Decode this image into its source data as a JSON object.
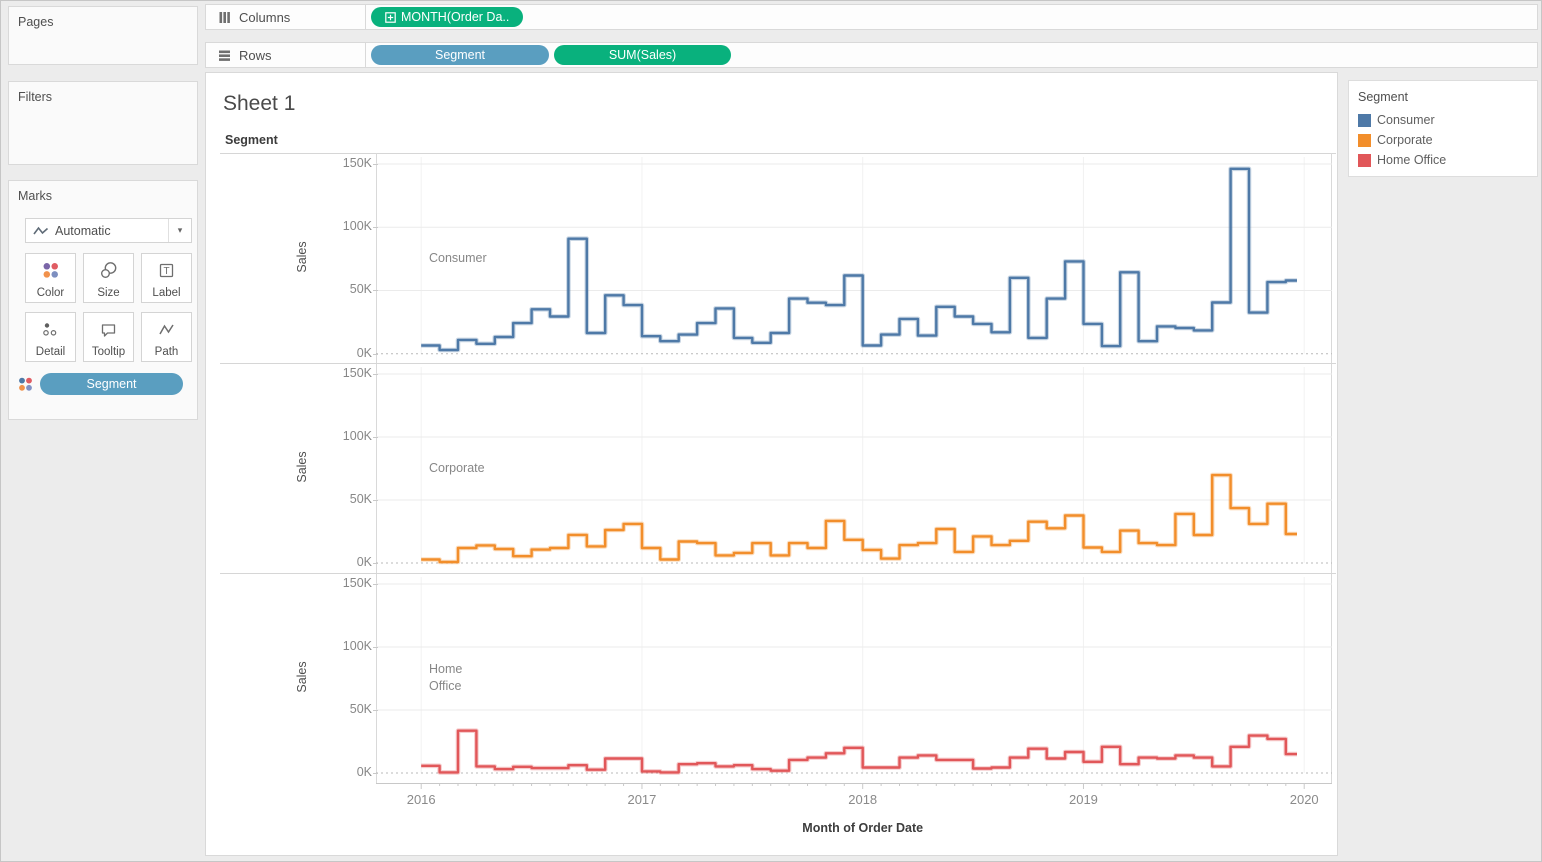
{
  "colors": {
    "pill_green": "#09b17d",
    "pill_blue": "#5a9ec0",
    "consumer_blue": "#4e79a7",
    "corporate_orange": "#f28e2b",
    "home_office_red": "#e15759"
  },
  "panels": {
    "pages": {
      "title": "Pages"
    },
    "filters": {
      "title": "Filters"
    },
    "marks": {
      "title": "Marks",
      "mark_type": "Automatic",
      "buttons": [
        {
          "label": "Color"
        },
        {
          "label": "Size"
        },
        {
          "label": "Label"
        },
        {
          "label": "Detail"
        },
        {
          "label": "Tooltip"
        },
        {
          "label": "Path"
        }
      ],
      "color_pill": "Segment"
    }
  },
  "shelves": {
    "columns": {
      "label": "Columns",
      "pills": [
        {
          "label": "MONTH(Order Da..",
          "type": "green"
        }
      ]
    },
    "rows": {
      "label": "Rows",
      "pills": [
        {
          "label": "Segment",
          "type": "blue"
        },
        {
          "label": "SUM(Sales)",
          "type": "green"
        }
      ]
    }
  },
  "sheet": {
    "title": "Sheet 1",
    "row_dimension_header": "Segment"
  },
  "legend": {
    "title": "Segment",
    "items": [
      {
        "label": "Consumer",
        "color": "#4e79a7"
      },
      {
        "label": "Corporate",
        "color": "#f28e2b"
      },
      {
        "label": "Home Office",
        "color": "#e15759"
      }
    ]
  },
  "chart_data": {
    "type": "line",
    "step": true,
    "title": "Sheet 1",
    "xlabel": "Month of Order Date",
    "ylabel": "Sales",
    "ylim_k": [
      0,
      150
    ],
    "y_tick_labels": [
      "150K",
      "100K",
      "50K",
      "0K"
    ],
    "y_tick_values_k": [
      150,
      100,
      50,
      0
    ],
    "x_tick_labels": [
      "2016",
      "2017",
      "2018",
      "2019",
      "2020"
    ],
    "grid": "horizontal",
    "zero_line": "dashed",
    "legend_position": "right",
    "values_unit": "USD thousands",
    "categories": [
      "2016-01",
      "2016-02",
      "2016-03",
      "2016-04",
      "2016-05",
      "2016-06",
      "2016-07",
      "2016-08",
      "2016-09",
      "2016-10",
      "2016-11",
      "2016-12",
      "2017-01",
      "2017-02",
      "2017-03",
      "2017-04",
      "2017-05",
      "2017-06",
      "2017-07",
      "2017-08",
      "2017-09",
      "2017-10",
      "2017-11",
      "2017-12",
      "2018-01",
      "2018-02",
      "2018-03",
      "2018-04",
      "2018-05",
      "2018-06",
      "2018-07",
      "2018-08",
      "2018-09",
      "2018-10",
      "2018-11",
      "2018-12",
      "2019-01",
      "2019-02",
      "2019-03",
      "2019-04",
      "2019-05",
      "2019-06",
      "2019-07",
      "2019-08",
      "2019-09",
      "2019-10",
      "2019-11",
      "2019-12"
    ],
    "series": [
      {
        "name": "Consumer",
        "color": "#4e79a7",
        "values_k": [
          6.5,
          2.9,
          10.9,
          7.8,
          13.2,
          24.2,
          35.1,
          29.4,
          90.9,
          16.4,
          46.2,
          38.4,
          13.8,
          9.9,
          15.1,
          24.2,
          35.8,
          12.5,
          8.6,
          16.4,
          43.6,
          40.3,
          38.4,
          61.8,
          6.5,
          15.1,
          27.5,
          14.3,
          37.1,
          29.4,
          23.6,
          16.9,
          60.0,
          12.5,
          43.6,
          73.0,
          23.6,
          6.0,
          64.4,
          9.9,
          21.6,
          20.3,
          18.4,
          40.5,
          146.2,
          32.5,
          56.6,
          57.9
        ]
      },
      {
        "name": "Corporate",
        "color": "#f28e2b",
        "values_k": [
          2.8,
          0.8,
          11.9,
          14.0,
          11.1,
          5.4,
          10.6,
          11.9,
          22.3,
          13.2,
          26.2,
          31.0,
          11.9,
          2.8,
          17.1,
          15.8,
          6.0,
          8.0,
          15.8,
          6.0,
          15.8,
          11.9,
          33.4,
          18.4,
          10.4,
          3.5,
          14.2,
          15.8,
          27.0,
          8.8,
          21.1,
          14.2,
          17.6,
          32.8,
          27.5,
          37.7,
          12.3,
          8.8,
          25.7,
          15.8,
          14.2,
          39.0,
          22.2,
          69.8,
          43.6,
          31.0,
          47.1,
          23.0
        ]
      },
      {
        "name": "Home Office",
        "color": "#e15759",
        "values_k": [
          5.7,
          0.5,
          33.6,
          5.2,
          3.1,
          4.9,
          3.9,
          3.9,
          6.2,
          2.6,
          11.5,
          11.5,
          1.3,
          0.5,
          7.0,
          7.8,
          5.2,
          6.2,
          3.1,
          1.8,
          10.4,
          12.2,
          15.6,
          20.0,
          4.4,
          4.4,
          12.2,
          14.0,
          10.4,
          10.4,
          3.6,
          4.4,
          12.2,
          19.3,
          11.5,
          16.7,
          8.9,
          20.8,
          7.0,
          12.2,
          11.5,
          14.0,
          12.2,
          5.2,
          20.8,
          29.7,
          27.1,
          15.0
        ]
      }
    ]
  }
}
